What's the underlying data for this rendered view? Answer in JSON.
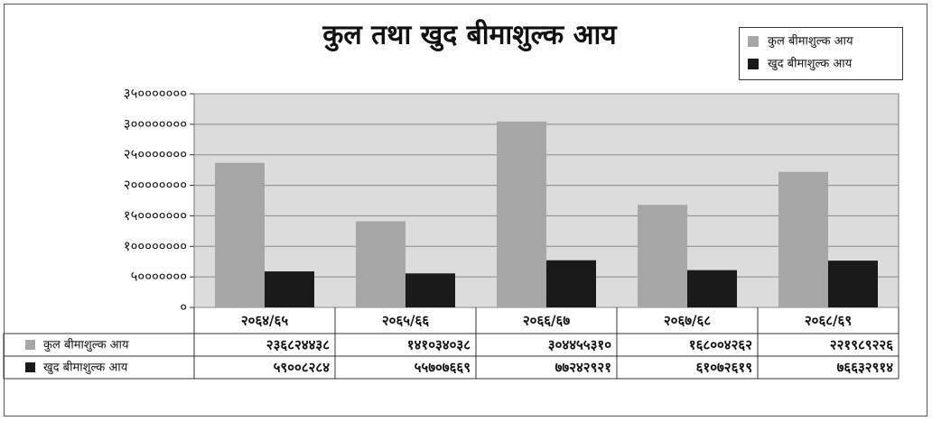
{
  "chart_data": {
    "type": "bar",
    "title": "कुल तथा खुद बीमाशुल्क आय",
    "categories": [
      "२०६४/६५",
      "२०६५/६६",
      "२०६६/६७",
      "२०६७/६८",
      "२०६८/६९"
    ],
    "series": [
      {
        "name": "कुल बीमाशुल्क आय",
        "color": "#a6a6a6",
        "values": [
          236824438,
          141034038,
          304455310,
          168004262,
          221989226
        ],
        "value_labels": [
          "२३६८२४४३८",
          "१४१०३४०३८",
          "३०४४५५३१०",
          "१६८००४२६२",
          "२२१९८९२२६"
        ]
      },
      {
        "name": "खुद बीमाशुल्क आय",
        "color": "#1a1a1a",
        "values": [
          59008284,
          55707669,
          77242921,
          61072619,
          76632914
        ],
        "value_labels": [
          "५९००८२८४",
          "५५७०७६६९",
          "७७२४२९२१",
          "६१०७२६१९",
          "७६६३२९१४"
        ]
      }
    ],
    "ylim": [
      0,
      350000000
    ],
    "yticks": [
      {
        "value": 0,
        "label": "०"
      },
      {
        "value": 50000000,
        "label": "५०००००००"
      },
      {
        "value": 100000000,
        "label": "१००००००००"
      },
      {
        "value": 150000000,
        "label": "१५०००००००"
      },
      {
        "value": 200000000,
        "label": "२००००००००"
      },
      {
        "value": 250000000,
        "label": "२५०००००००"
      },
      {
        "value": 300000000,
        "label": "३००००००००"
      },
      {
        "value": 350000000,
        "label": "३५०००००००"
      }
    ],
    "grid": true,
    "legend": "top-right"
  }
}
